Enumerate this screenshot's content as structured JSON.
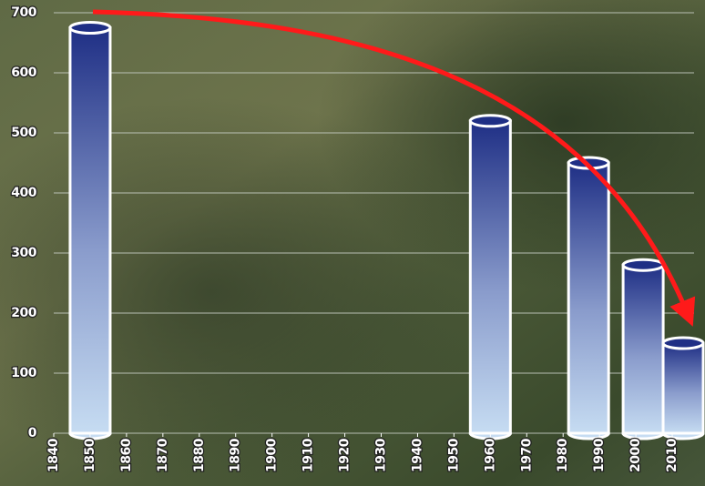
{
  "chart_data": {
    "type": "bar",
    "x": [
      1850,
      1960,
      1987,
      2002,
      2013
    ],
    "values": [
      675,
      520,
      450,
      280,
      150
    ],
    "color": "#1f2f85",
    "xlim": [
      1840,
      2019
    ],
    "xticks": [
      1840,
      1850,
      1860,
      1870,
      1880,
      1890,
      1900,
      1910,
      1920,
      1930,
      1940,
      1950,
      1960,
      1970,
      1980,
      1990,
      2000,
      2010
    ],
    "ylim": [
      0,
      700
    ],
    "yticks": [
      0,
      100,
      200,
      300,
      400,
      500,
      600,
      700
    ],
    "grid": true
  }
}
